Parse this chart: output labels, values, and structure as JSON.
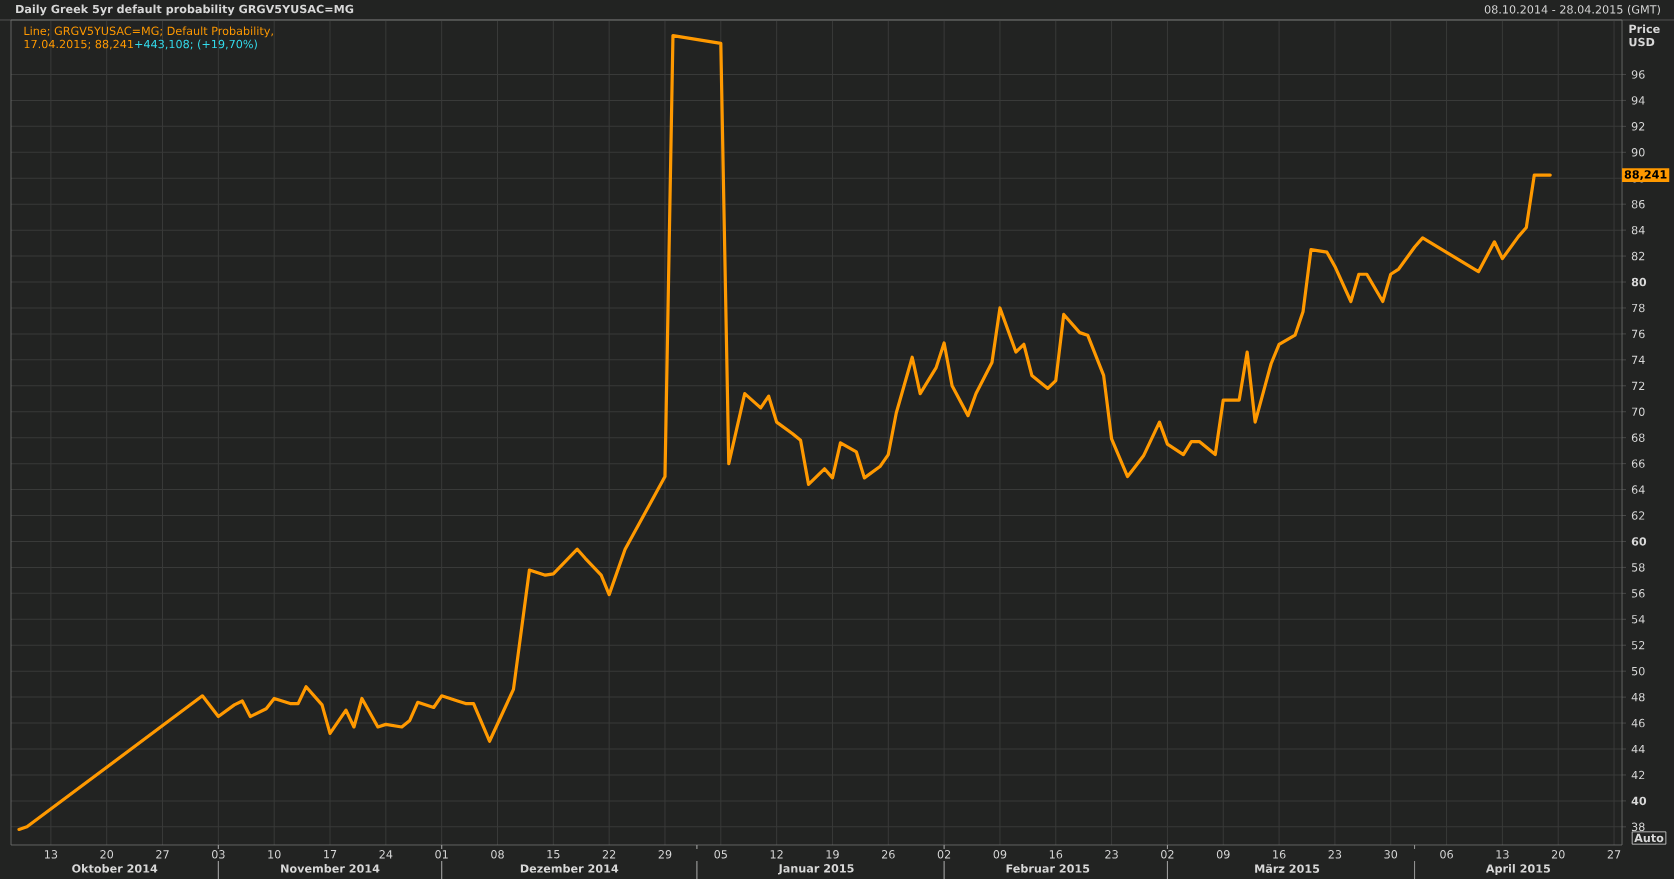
{
  "chart_data": {
    "type": "line",
    "title": "Daily Greek 5yr default probability GRGV5YUSAC=MG",
    "subtitle": "08.10.2014 - 28.04.2015 (GMT)",
    "ylabel": "Price USD",
    "x": [
      "2014-10-09",
      "2014-10-10",
      "2014-11-01",
      "2014-11-03",
      "2014-11-05",
      "2014-11-06",
      "2014-11-07",
      "2014-11-09",
      "2014-11-10",
      "2014-11-12",
      "2014-11-13",
      "2014-11-14",
      "2014-11-16",
      "2014-11-17",
      "2014-11-19",
      "2014-11-20",
      "2014-11-21",
      "2014-11-23",
      "2014-11-24",
      "2014-11-26",
      "2014-11-27",
      "2014-11-28",
      "2014-11-30",
      "2014-12-01",
      "2014-12-03",
      "2014-12-04",
      "2014-12-05",
      "2014-12-07",
      "2014-12-10",
      "2014-12-12",
      "2014-12-14",
      "2014-12-15",
      "2014-12-18",
      "2014-12-19",
      "2014-12-21",
      "2014-12-22",
      "2014-12-24",
      "2014-12-29",
      "2014-12-30",
      "2015-01-05",
      "2015-01-06",
      "2015-01-08",
      "2015-01-10",
      "2015-01-11",
      "2015-01-12",
      "2015-01-14",
      "2015-01-15",
      "2015-01-16",
      "2015-01-18",
      "2015-01-19",
      "2015-01-20",
      "2015-01-22",
      "2015-01-23",
      "2015-01-25",
      "2015-01-26",
      "2015-01-27",
      "2015-01-29",
      "2015-01-30",
      "2015-02-01",
      "2015-02-02",
      "2015-02-03",
      "2015-02-05",
      "2015-02-06",
      "2015-02-08",
      "2015-02-09",
      "2015-02-11",
      "2015-02-12",
      "2015-02-13",
      "2015-02-15",
      "2015-02-16",
      "2015-02-17",
      "2015-02-19",
      "2015-02-20",
      "2015-02-22",
      "2015-02-23",
      "2015-02-25",
      "2015-02-26",
      "2015-02-27",
      "2015-03-01",
      "2015-03-02",
      "2015-03-04",
      "2015-03-05",
      "2015-03-06",
      "2015-03-08",
      "2015-03-09",
      "2015-03-11",
      "2015-03-12",
      "2015-03-13",
      "2015-03-15",
      "2015-03-16",
      "2015-03-18",
      "2015-03-19",
      "2015-03-20",
      "2015-03-22",
      "2015-03-23",
      "2015-03-25",
      "2015-03-26",
      "2015-03-27",
      "2015-03-29",
      "2015-03-30",
      "2015-03-31",
      "2015-04-02",
      "2015-04-03",
      "2015-04-10",
      "2015-04-12",
      "2015-04-13",
      "2015-04-15",
      "2015-04-16",
      "2015-04-17",
      "2015-04-19"
    ],
    "series": [
      {
        "name": "Line; GRGV5YUSAC=MG; Default Probability,",
        "color": "#ff9900",
        "values": [
          37.8,
          38.0,
          48.1,
          46.5,
          47.4,
          47.7,
          46.5,
          47.1,
          47.9,
          47.5,
          47.5,
          48.8,
          47.4,
          45.2,
          47.0,
          45.7,
          47.9,
          45.7,
          45.9,
          45.7,
          46.2,
          47.6,
          47.2,
          48.1,
          47.7,
          47.5,
          47.5,
          44.6,
          48.6,
          57.8,
          57.4,
          57.5,
          59.4,
          58.7,
          57.4,
          55.9,
          59.4,
          65.0,
          99.0,
          98.4,
          66.0,
          71.4,
          70.3,
          71.2,
          69.2,
          68.3,
          67.8,
          64.4,
          65.6,
          64.9,
          67.6,
          66.9,
          64.9,
          65.8,
          66.7,
          69.9,
          74.2,
          71.4,
          73.4,
          75.3,
          72.0,
          69.7,
          71.4,
          73.8,
          78.0,
          74.6,
          75.2,
          72.8,
          71.8,
          72.4,
          77.5,
          76.1,
          75.9,
          72.8,
          67.9,
          65.0,
          65.8,
          66.6,
          69.2,
          67.5,
          66.7,
          67.7,
          67.7,
          66.7,
          70.9,
          70.9,
          74.6,
          69.2,
          73.7,
          75.2,
          75.9,
          77.7,
          82.5,
          82.3,
          81.2,
          78.5,
          80.6,
          80.6,
          78.5,
          80.6,
          81.0,
          82.7,
          83.4,
          80.8,
          83.1,
          81.8,
          83.5,
          84.2,
          88.241,
          88.241
        ]
      }
    ],
    "xlim": [
      "2014-10-08",
      "2015-04-28"
    ],
    "xticks": [
      {
        "value": "2014-10-13",
        "label": "13"
      },
      {
        "value": "2014-10-20",
        "label": "20"
      },
      {
        "value": "2014-10-27",
        "label": "27"
      },
      {
        "value": "2014-11-03",
        "label": "03"
      },
      {
        "value": "2014-11-10",
        "label": "10"
      },
      {
        "value": "2014-11-17",
        "label": "17"
      },
      {
        "value": "2014-11-24",
        "label": "24"
      },
      {
        "value": "2014-12-01",
        "label": "01"
      },
      {
        "value": "2014-12-08",
        "label": "08"
      },
      {
        "value": "2014-12-15",
        "label": "15"
      },
      {
        "value": "2014-12-22",
        "label": "22"
      },
      {
        "value": "2014-12-29",
        "label": "29"
      },
      {
        "value": "2015-01-05",
        "label": "05"
      },
      {
        "value": "2015-01-12",
        "label": "12"
      },
      {
        "value": "2015-01-19",
        "label": "19"
      },
      {
        "value": "2015-01-26",
        "label": "26"
      },
      {
        "value": "2015-02-02",
        "label": "02"
      },
      {
        "value": "2015-02-09",
        "label": "09"
      },
      {
        "value": "2015-02-16",
        "label": "16"
      },
      {
        "value": "2015-02-23",
        "label": "23"
      },
      {
        "value": "2015-03-02",
        "label": "02"
      },
      {
        "value": "2015-03-09",
        "label": "09"
      },
      {
        "value": "2015-03-16",
        "label": "16"
      },
      {
        "value": "2015-03-23",
        "label": "23"
      },
      {
        "value": "2015-03-30",
        "label": "30"
      },
      {
        "value": "2015-04-06",
        "label": "06"
      },
      {
        "value": "2015-04-13",
        "label": "13"
      },
      {
        "value": "2015-04-20",
        "label": "20"
      },
      {
        "value": "2015-04-27",
        "label": "27"
      }
    ],
    "x2lim": [
      "2014-10-08",
      "2015-04-28"
    ],
    "x2ticks": [
      {
        "value": "2014-10-21",
        "label": "Oktober 2014"
      },
      {
        "value": "2014-11-03",
        "label": null
      },
      {
        "value": "2014-11-17",
        "label": "November 2014"
      },
      {
        "value": "2014-12-01",
        "label": null
      },
      {
        "value": "2014-12-17",
        "label": "Dezember 2014"
      },
      {
        "value": "2015-01-02",
        "label": null
      },
      {
        "value": "2015-01-17",
        "label": "Januar 2015"
      },
      {
        "value": "2015-02-02",
        "label": null
      },
      {
        "value": "2015-02-15",
        "label": "Februar 2015"
      },
      {
        "value": "2015-03-02",
        "label": null
      },
      {
        "value": "2015-03-17",
        "label": "März 2015"
      },
      {
        "value": "2015-04-02",
        "label": null
      },
      {
        "value": "2015-04-15",
        "label": "April 2015"
      }
    ],
    "ylim": [
      36.6,
      100.2
    ],
    "yticks": [
      38,
      40,
      42,
      44,
      46,
      48,
      50,
      52,
      54,
      56,
      58,
      60,
      62,
      64,
      66,
      68,
      70,
      72,
      74,
      76,
      78,
      80,
      82,
      84,
      86,
      88,
      90,
      92,
      94,
      96
    ],
    "grid": true,
    "legend": "top left",
    "annotations": [
      "17.04.2015; 88,241",
      "+443,108; (+19,70%)",
      "88,241",
      "Auto"
    ]
  }
}
